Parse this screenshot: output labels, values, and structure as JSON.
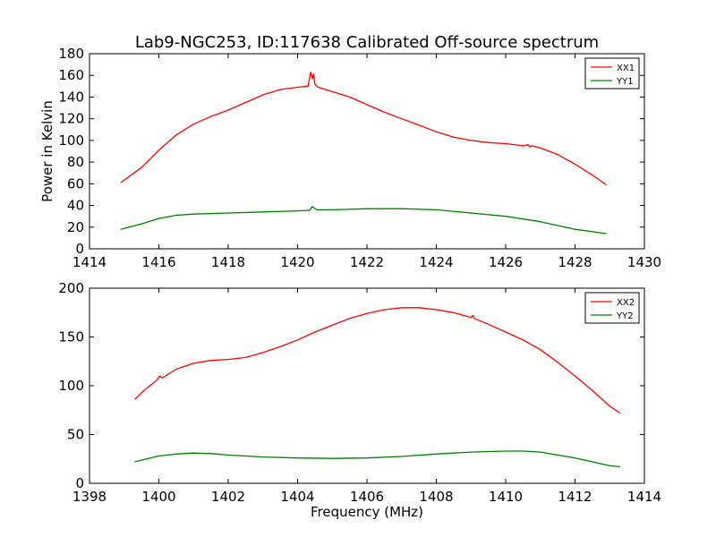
{
  "page": {
    "title": "Lab9-NGC253, ID:117638 Calibrated Off-source spectrum"
  },
  "chart_data": [
    {
      "type": "line",
      "title": "Lab9-NGC253, ID:117638 Calibrated Off-source spectrum",
      "xlabel": "",
      "ylabel": "Power in Kelvin",
      "xlim": [
        1414,
        1430
      ],
      "ylim": [
        0,
        180
      ],
      "xticks": [
        1414,
        1416,
        1418,
        1420,
        1422,
        1424,
        1426,
        1428,
        1430
      ],
      "yticks": [
        0,
        20,
        40,
        60,
        80,
        100,
        120,
        140,
        160,
        180
      ],
      "legend": "top-right",
      "grid": false,
      "series": [
        {
          "name": "XX1",
          "color": "#ff0000",
          "x": [
            1414.9,
            1415.5,
            1416.0,
            1416.5,
            1417.0,
            1417.5,
            1418.0,
            1418.5,
            1419.0,
            1419.5,
            1420.0,
            1420.3,
            1420.38,
            1420.43,
            1420.46,
            1420.5,
            1420.55,
            1420.6,
            1420.7,
            1421.0,
            1421.5,
            1422.0,
            1422.5,
            1423.0,
            1423.5,
            1424.0,
            1424.5,
            1425.0,
            1425.5,
            1426.0,
            1426.5,
            1426.65,
            1426.7,
            1426.75,
            1427.0,
            1427.5,
            1428.0,
            1428.5,
            1428.9
          ],
          "y": [
            61,
            75,
            91,
            105,
            115,
            122,
            128,
            135,
            142,
            147,
            149,
            150,
            163,
            157,
            161,
            152,
            150,
            149,
            148,
            145,
            140,
            133,
            126,
            120,
            114,
            108,
            103,
            100,
            98,
            97,
            95,
            96,
            94,
            95,
            93,
            87,
            78,
            68,
            59
          ]
        },
        {
          "name": "YY1",
          "color": "#007f00",
          "x": [
            1414.9,
            1415.5,
            1416.0,
            1416.5,
            1417.0,
            1418.0,
            1419.0,
            1420.0,
            1420.35,
            1420.42,
            1420.47,
            1420.55,
            1420.6,
            1421.0,
            1422.0,
            1423.0,
            1424.0,
            1425.0,
            1426.0,
            1427.0,
            1428.0,
            1428.9
          ],
          "y": [
            18,
            23,
            28,
            31,
            32,
            33,
            34,
            35,
            35.5,
            39,
            38,
            36,
            36,
            36,
            37,
            37,
            36,
            33,
            30,
            25,
            18,
            14
          ]
        }
      ]
    },
    {
      "type": "line",
      "title": "",
      "xlabel": "Frequency (MHz)",
      "ylabel": "",
      "xlim": [
        1398,
        1414
      ],
      "ylim": [
        0,
        200
      ],
      "xticks": [
        1398,
        1400,
        1402,
        1404,
        1406,
        1408,
        1410,
        1412,
        1414
      ],
      "yticks": [
        0,
        50,
        100,
        150,
        200
      ],
      "legend": "top-right",
      "grid": false,
      "series": [
        {
          "name": "XX2",
          "color": "#ff0000",
          "x": [
            1399.3,
            1399.6,
            1399.95,
            1400.02,
            1400.1,
            1400.5,
            1401.0,
            1401.5,
            1402.0,
            1402.5,
            1403.0,
            1403.5,
            1404.0,
            1404.5,
            1405.0,
            1405.5,
            1406.0,
            1406.5,
            1407.0,
            1407.5,
            1408.0,
            1408.5,
            1409.0,
            1409.05,
            1409.1,
            1409.5,
            1410.0,
            1410.5,
            1411.0,
            1411.5,
            1412.0,
            1412.5,
            1413.0,
            1413.3
          ],
          "y": [
            86,
            96,
            106,
            110,
            108,
            117,
            123,
            126,
            127,
            129,
            134,
            140,
            147,
            155,
            162,
            169,
            174,
            178,
            180,
            180,
            178,
            175,
            170,
            172,
            169,
            163,
            155,
            147,
            137,
            124,
            110,
            95,
            79,
            72
          ]
        },
        {
          "name": "YY2",
          "color": "#007f00",
          "x": [
            1399.3,
            1400.0,
            1400.5,
            1401.0,
            1401.5,
            1402.0,
            1403.0,
            1404.0,
            1405.0,
            1406.0,
            1407.0,
            1408.0,
            1409.0,
            1410.0,
            1410.5,
            1411.0,
            1411.5,
            1412.0,
            1412.5,
            1413.0,
            1413.3
          ],
          "y": [
            22,
            28,
            30,
            31,
            30.5,
            29,
            27,
            26,
            25.5,
            26,
            27.5,
            30,
            32,
            33,
            33,
            32,
            29,
            26,
            22,
            18,
            17
          ]
        }
      ]
    }
  ]
}
